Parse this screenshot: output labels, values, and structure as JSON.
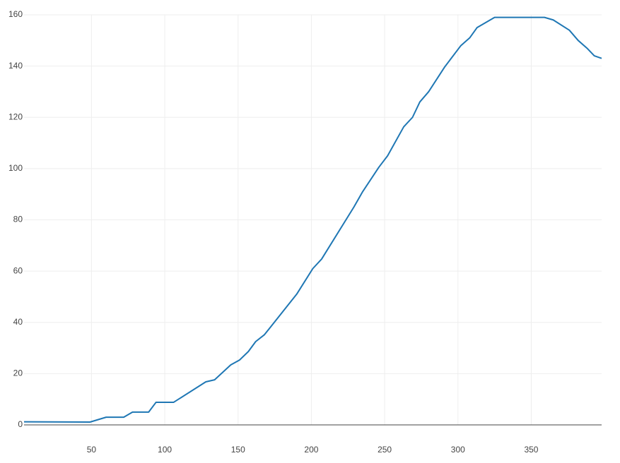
{
  "chart_data": {
    "type": "line",
    "x": [
      4,
      49,
      60,
      72,
      78,
      89,
      94,
      106,
      128,
      134,
      145,
      151,
      157,
      162,
      168,
      190,
      201,
      207,
      229,
      235,
      246,
      252,
      263,
      269,
      274,
      280,
      291,
      302,
      308,
      313,
      325,
      359,
      365,
      376,
      382,
      388,
      393,
      398
    ],
    "series": [
      {
        "color": "#1f77b4",
        "values": [
          1.2,
          1.1,
          3,
          3,
          5,
          5,
          8.8,
          8.8,
          16.8,
          17.6,
          23.4,
          25.3,
          28.6,
          32.5,
          35.2,
          51,
          61,
          64.7,
          85,
          91,
          100.5,
          105,
          116.3,
          120,
          126,
          130,
          139.7,
          148,
          151,
          155,
          159,
          159,
          158,
          154,
          150,
          147,
          144,
          143
        ]
      }
    ],
    "xlim": [
      4,
      398
    ],
    "xticks": [
      50,
      100,
      150,
      200,
      250,
      300,
      350
    ],
    "ylim": [
      0,
      160
    ],
    "yticks": [
      0,
      20,
      40,
      60,
      80,
      100,
      120,
      140,
      160
    ],
    "grid": true
  }
}
